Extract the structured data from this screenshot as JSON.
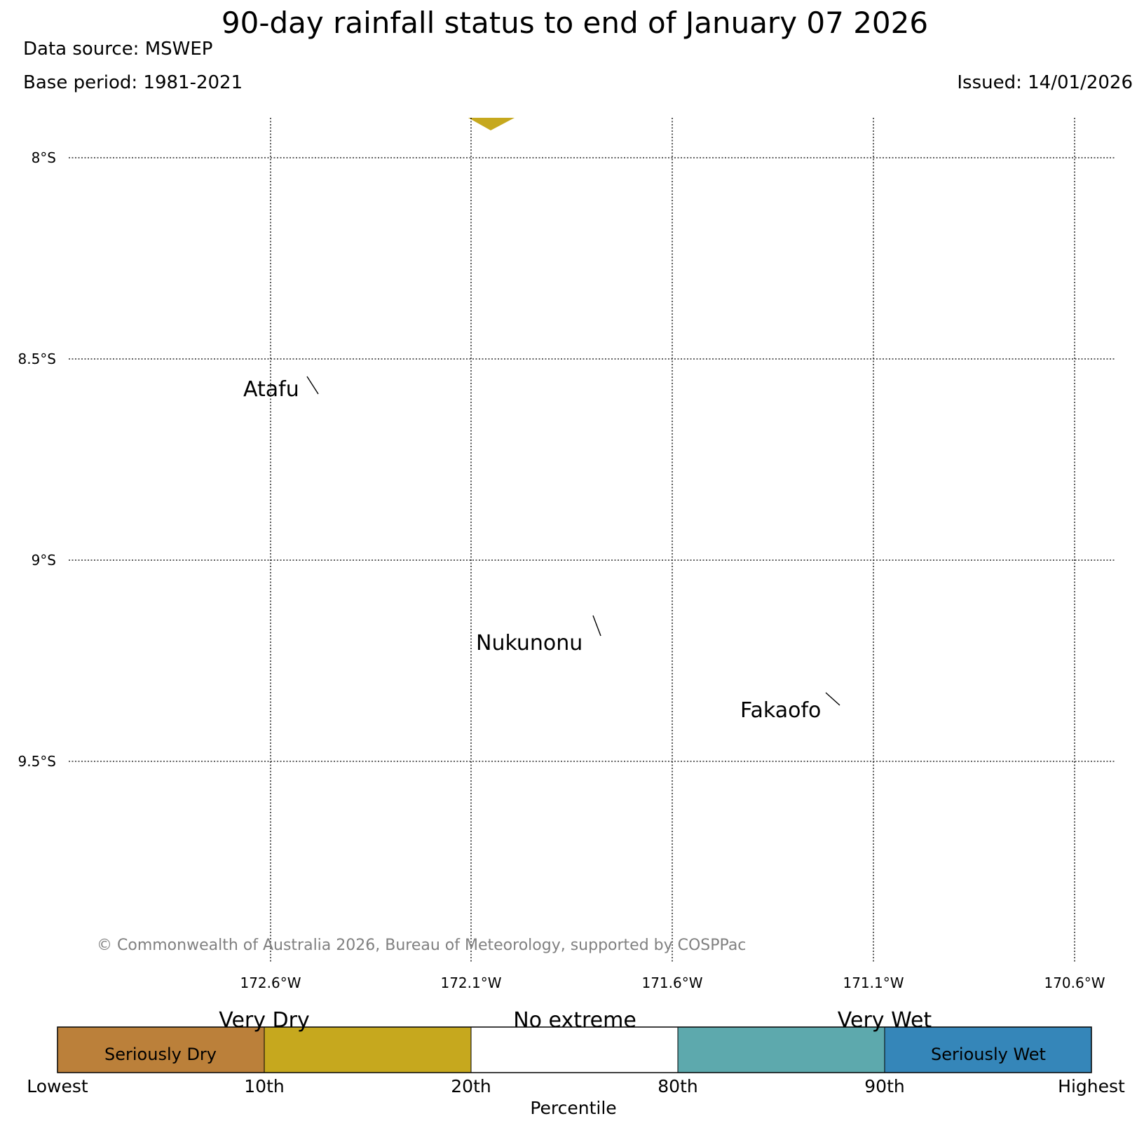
{
  "header": {
    "title": "90-day rainfall status to end of January 07 2026",
    "source": "Data source: MSWEP",
    "base_period": "Base period: 1981-2021",
    "issued": "Issued: 14/01/2026"
  },
  "map": {
    "lat_labels": [
      "8°S",
      "8.5°S",
      "9°S",
      "9.5°S"
    ],
    "lon_labels": [
      "172.6°W",
      "172.1°W",
      "171.6°W",
      "171.1°W",
      "170.6°W"
    ],
    "places": [
      "Atafu",
      "Nukunonu",
      "Fakaofo"
    ],
    "copyright": "© Commonwealth of Australia 2026, Bureau of Meteorology, supported by COSPPac",
    "shaded_region_color": "#c6a81e"
  },
  "legend": {
    "group_labels": [
      "Very Dry",
      "No extreme",
      "Very Wet"
    ],
    "inner_labels": [
      "Seriously Dry",
      "Seriously Wet"
    ],
    "tick_labels": [
      "Lowest",
      "10th",
      "20th",
      "80th",
      "90th",
      "Highest"
    ],
    "axis_label": "Percentile",
    "colors": [
      "#bb803a",
      "#c6a81e",
      "#ffffff",
      "#5da9ad",
      "#3586b9"
    ]
  }
}
